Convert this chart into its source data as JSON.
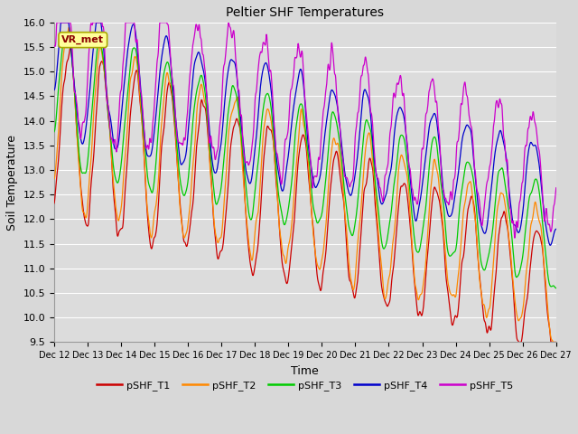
{
  "title": "Peltier SHF Temperatures",
  "xlabel": "Time",
  "ylabel": "Soil Temperature",
  "annotation": "VR_met",
  "xlim_days": [
    12,
    27
  ],
  "ylim": [
    9.5,
    16.0
  ],
  "yticks": [
    9.5,
    10.0,
    10.5,
    11.0,
    11.5,
    12.0,
    12.5,
    13.0,
    13.5,
    14.0,
    14.5,
    15.0,
    15.5,
    16.0
  ],
  "xtick_labels": [
    "Dec 12",
    "Dec 13",
    "Dec 14",
    "Dec 15",
    "Dec 16",
    "Dec 17",
    "Dec 18",
    "Dec 19",
    "Dec 20",
    "Dec 21",
    "Dec 22",
    "Dec 23",
    "Dec 24",
    "Dec 25",
    "Dec 26",
    "Dec 27"
  ],
  "series_labels": [
    "pSHF_T1",
    "pSHF_T2",
    "pSHF_T3",
    "pSHF_T4",
    "pSHF_T5"
  ],
  "series_colors": [
    "#cc0000",
    "#ff8800",
    "#00cc00",
    "#0000cc",
    "#cc00cc"
  ],
  "bg_color": "#dcdcdc",
  "grid_color": "#ffffff",
  "linewidth": 0.9,
  "n_points": 1500
}
